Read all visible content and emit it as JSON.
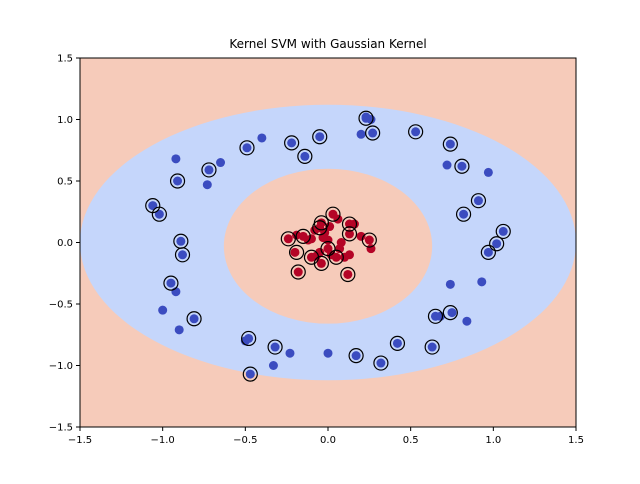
{
  "chart_data": {
    "type": "scatter",
    "title": "Kernel SVM with Gaussian Kernel",
    "xlabel": "",
    "ylabel": "",
    "xlim": [
      -1.5,
      1.5
    ],
    "ylim": [
      -1.5,
      1.5
    ],
    "x_ticks": [
      "−1.5",
      "−1.0",
      "−0.5",
      "0.0",
      "0.5",
      "1.0",
      "1.5"
    ],
    "y_ticks": [
      "−1.5",
      "−1.0",
      "−0.5",
      "0.0",
      "0.5",
      "1.0",
      "1.5"
    ],
    "grid": false,
    "decision_regions": {
      "outer_region_color": "#f6cbba",
      "ring_region_color": "#c5d6fb",
      "inner_region_color": "#f6cbba",
      "outer_boundary": {
        "center": [
          0.0,
          0.0
        ],
        "rx": 1.5,
        "ry": 1.12
      },
      "inner_boundary": {
        "center": [
          0.0,
          -0.03
        ],
        "rx": 0.63,
        "ry": 0.63
      }
    },
    "colors": {
      "class_outer": "#3b4cc0",
      "class_inner": "#b40426",
      "support_vector_ring": "#000000"
    },
    "series": [
      {
        "class": "outer",
        "points": [
          [
            0.23,
            1.02
          ],
          [
            0.26,
            1.0
          ],
          [
            0.27,
            0.89
          ],
          [
            0.2,
            0.88
          ],
          [
            0.23,
            1.01
          ],
          [
            -0.05,
            0.86
          ],
          [
            -0.22,
            0.81
          ],
          [
            -0.14,
            0.7
          ],
          [
            -0.4,
            0.85
          ],
          [
            -0.49,
            0.77
          ],
          [
            -0.65,
            0.65
          ],
          [
            -0.72,
            0.59
          ],
          [
            -0.73,
            0.47
          ],
          [
            -0.92,
            0.68
          ],
          [
            -0.91,
            0.5
          ],
          [
            -1.06,
            0.3
          ],
          [
            -1.02,
            0.23
          ],
          [
            -0.89,
            0.01
          ],
          [
            -0.88,
            -0.1
          ],
          [
            -0.95,
            -0.33
          ],
          [
            -0.92,
            -0.4
          ],
          [
            -1.0,
            -0.55
          ],
          [
            -0.9,
            -0.71
          ],
          [
            -0.81,
            -0.62
          ],
          [
            -0.5,
            -0.8
          ],
          [
            -0.48,
            -0.78
          ],
          [
            -0.47,
            -1.07
          ],
          [
            -0.33,
            -1.0
          ],
          [
            -0.32,
            -0.85
          ],
          [
            -0.23,
            -0.9
          ],
          [
            0.0,
            -0.9
          ],
          [
            0.17,
            -0.92
          ],
          [
            0.32,
            -0.98
          ],
          [
            0.42,
            -0.82
          ],
          [
            0.63,
            -0.85
          ],
          [
            0.65,
            -0.6
          ],
          [
            0.68,
            -0.6
          ],
          [
            0.75,
            -0.57
          ],
          [
            0.74,
            -0.34
          ],
          [
            0.84,
            -0.64
          ],
          [
            0.93,
            -0.32
          ],
          [
            0.97,
            -0.08
          ],
          [
            1.02,
            -0.01
          ],
          [
            1.06,
            0.09
          ],
          [
            0.82,
            0.23
          ],
          [
            0.91,
            0.34
          ],
          [
            0.97,
            0.57
          ],
          [
            0.72,
            0.63
          ],
          [
            0.81,
            0.62
          ],
          [
            0.74,
            0.8
          ],
          [
            0.53,
            0.9
          ]
        ]
      },
      {
        "class": "inner",
        "points": [
          [
            -0.24,
            0.03
          ],
          [
            -0.19,
            0.06
          ],
          [
            -0.2,
            -0.08
          ],
          [
            -0.15,
            0.05
          ],
          [
            -0.1,
            0.03
          ],
          [
            -0.08,
            0.1
          ],
          [
            -0.05,
            0.12
          ],
          [
            -0.04,
            0.16
          ],
          [
            -0.02,
            0.08
          ],
          [
            0.01,
            0.13
          ],
          [
            0.03,
            0.23
          ],
          [
            0.06,
            0.19
          ],
          [
            0.0,
            -0.05
          ],
          [
            -0.05,
            -0.08
          ],
          [
            -0.07,
            -0.11
          ],
          [
            -0.1,
            -0.12
          ],
          [
            -0.04,
            -0.17
          ],
          [
            0.02,
            -0.1
          ],
          [
            0.05,
            -0.12
          ],
          [
            0.07,
            -0.05
          ],
          [
            0.1,
            -0.12
          ],
          [
            0.13,
            -0.1
          ],
          [
            0.13,
            0.15
          ],
          [
            0.16,
            0.15
          ],
          [
            0.13,
            0.07
          ],
          [
            0.2,
            0.05
          ],
          [
            0.25,
            0.02
          ],
          [
            0.26,
            -0.05
          ],
          [
            -0.18,
            -0.24
          ],
          [
            0.12,
            -0.26
          ],
          [
            -0.12,
            0.02
          ],
          [
            0.0,
            0.02
          ],
          [
            0.08,
            0.0
          ],
          [
            -0.03,
            0.04
          ]
        ]
      }
    ],
    "support_vectors": [
      [
        0.23,
        1.01
      ],
      [
        0.27,
        0.89
      ],
      [
        -0.05,
        0.86
      ],
      [
        -0.22,
        0.81
      ],
      [
        -0.14,
        0.7
      ],
      [
        -0.49,
        0.77
      ],
      [
        -0.72,
        0.59
      ],
      [
        -0.91,
        0.5
      ],
      [
        -1.06,
        0.3
      ],
      [
        -1.02,
        0.23
      ],
      [
        -0.89,
        0.01
      ],
      [
        -0.88,
        -0.1
      ],
      [
        -0.95,
        -0.33
      ],
      [
        -0.81,
        -0.62
      ],
      [
        -0.48,
        -0.78
      ],
      [
        -0.47,
        -1.07
      ],
      [
        -0.32,
        -0.85
      ],
      [
        0.17,
        -0.92
      ],
      [
        0.32,
        -0.98
      ],
      [
        0.42,
        -0.82
      ],
      [
        0.63,
        -0.85
      ],
      [
        0.65,
        -0.6
      ],
      [
        0.74,
        -0.57
      ],
      [
        0.97,
        -0.08
      ],
      [
        1.02,
        -0.01
      ],
      [
        1.06,
        0.09
      ],
      [
        0.82,
        0.23
      ],
      [
        0.91,
        0.34
      ],
      [
        0.81,
        0.62
      ],
      [
        0.74,
        0.8
      ],
      [
        0.53,
        0.9
      ],
      [
        -0.24,
        0.03
      ],
      [
        -0.19,
        -0.08
      ],
      [
        -0.15,
        0.05
      ],
      [
        -0.05,
        0.12
      ],
      [
        -0.04,
        0.16
      ],
      [
        0.03,
        0.23
      ],
      [
        -0.1,
        -0.12
      ],
      [
        -0.04,
        -0.17
      ],
      [
        0.05,
        -0.12
      ],
      [
        0.13,
        0.15
      ],
      [
        0.13,
        0.07
      ],
      [
        0.25,
        0.02
      ],
      [
        -0.18,
        -0.24
      ],
      [
        0.12,
        -0.26
      ],
      [
        0.0,
        -0.05
      ]
    ]
  }
}
